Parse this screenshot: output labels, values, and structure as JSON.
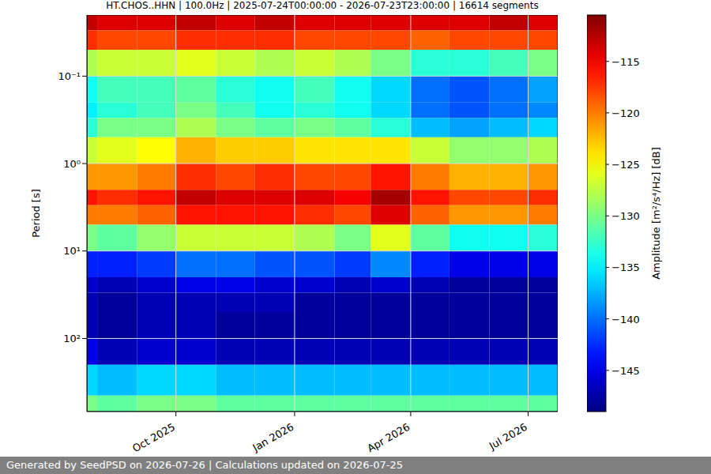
{
  "chart_data": {
    "type": "heatmap",
    "title": "HT.CHOS..HHN | 100.0Hz | 2025-07-24T00:00:00 - 2026-07-23T23:00:00 | 16614 segments",
    "footer": "Generated by SeedPSD on 2026-07-26 | Calculations updated on 2026-07-25",
    "y_label": "Period [s]",
    "log": "y",
    "grid": true,
    "x": [
      "2025-07",
      "2025-08",
      "2025-09",
      "2025-10",
      "2025-11",
      "2025-12",
      "2026-01",
      "2026-02",
      "2026-03",
      "2026-04",
      "2026-05",
      "2026-06",
      "2026-07"
    ],
    "xlim": [
      "2025-07-24T00:00:00",
      "2026-07-23T23:00:00"
    ],
    "xticks": [
      {
        "value": "2025-10",
        "label": "Oct 2025"
      },
      {
        "value": "2026-01",
        "label": "Jan 2026"
      },
      {
        "value": "2026-04",
        "label": "Apr 2026"
      },
      {
        "value": "2026-07",
        "label": "Jul 2026"
      }
    ],
    "ylim": [
      0.02,
      686
    ],
    "yticks": [
      {
        "value": 0.1,
        "label": "10⁻¹"
      },
      {
        "value": 1,
        "label": "10⁰"
      },
      {
        "value": 10,
        "label": "10¹"
      },
      {
        "value": 100,
        "label": "10²"
      }
    ],
    "y_edges": [
      0.02,
      0.03,
      0.05,
      0.1,
      0.2,
      0.3,
      0.5,
      1,
      2,
      3,
      5,
      10,
      20,
      30,
      50,
      100,
      200,
      450,
      686
    ],
    "cells": [
      [
        -113,
        -114,
        -114,
        -113,
        -114,
        -113,
        -114,
        -114,
        -114,
        -114,
        -114,
        -113,
        -114
      ],
      [
        -117,
        -118,
        -118,
        -117,
        -117,
        -117,
        -118,
        -118,
        -118,
        -119,
        -118,
        -118,
        -118
      ],
      [
        -128,
        -127,
        -127,
        -126,
        -127,
        -128,
        -127,
        -128,
        -130,
        -133,
        -133,
        -132,
        -130
      ],
      [
        -134,
        -132,
        -132,
        -131,
        -133,
        -134,
        -132,
        -134,
        -136,
        -140,
        -141,
        -140,
        -138
      ],
      [
        -135,
        -133,
        -132,
        -130,
        -132,
        -134,
        -133,
        -134,
        -136,
        -140,
        -141,
        -140,
        -139
      ],
      [
        -133,
        -130,
        -130,
        -128,
        -130,
        -131,
        -130,
        -131,
        -133,
        -137,
        -138,
        -137,
        -136
      ],
      [
        -127,
        -126,
        -125,
        -122,
        -123,
        -123,
        -124,
        -124,
        -124,
        -127,
        -129,
        -129,
        -128
      ],
      [
        -121,
        -121,
        -120,
        -117,
        -118,
        -117,
        -118,
        -118,
        -116,
        -120,
        -122,
        -122,
        -121
      ],
      [
        -116,
        -117,
        -116,
        -113,
        -114,
        -114,
        -114,
        -115,
        -112,
        -116,
        -118,
        -118,
        -117
      ],
      [
        -120,
        -120,
        -119,
        -116,
        -116,
        -116,
        -117,
        -118,
        -114,
        -119,
        -121,
        -121,
        -120
      ],
      [
        -130,
        -131,
        -129,
        -127,
        -127,
        -127,
        -128,
        -130,
        -126,
        -131,
        -134,
        -134,
        -133
      ],
      [
        -143,
        -143,
        -142,
        -140,
        -140,
        -141,
        -141,
        -142,
        -139,
        -143,
        -145,
        -145,
        -145
      ],
      [
        -146,
        -147,
        -146,
        -145,
        -145,
        -146,
        -146,
        -147,
        -146,
        -147,
        -148,
        -148,
        -148
      ],
      [
        -147,
        -148,
        -147,
        -147,
        -147,
        -147,
        -148,
        -148,
        -148,
        -148,
        -148,
        -148,
        -148
      ],
      [
        -147,
        -148,
        -147,
        -147,
        -148,
        -148,
        -148,
        -148,
        -148,
        -148,
        -148,
        -148,
        -148
      ],
      [
        -145,
        -147,
        -146,
        -146,
        -147,
        -147,
        -147,
        -147,
        -147,
        -147,
        -147,
        -147,
        -147
      ],
      [
        -136,
        -137,
        -136,
        -136,
        -137,
        -137,
        -137,
        -137,
        -137,
        -137,
        -137,
        -137,
        -137
      ],
      [
        -130,
        -131,
        -130,
        -130,
        -131,
        -131,
        -131,
        -131,
        -131,
        -131,
        -131,
        -131,
        -131
      ]
    ],
    "colorbar": {
      "label": "Amplitude [m²/s⁴/Hz] [dB]",
      "range": [
        -149,
        -110.5
      ],
      "ticks": [
        {
          "value": -115,
          "label": "−115"
        },
        {
          "value": -120,
          "label": "−120"
        },
        {
          "value": -125,
          "label": "−125"
        },
        {
          "value": -130,
          "label": "−130"
        },
        {
          "value": -135,
          "label": "−135"
        },
        {
          "value": -140,
          "label": "−140"
        },
        {
          "value": -145,
          "label": "−145"
        }
      ]
    }
  }
}
